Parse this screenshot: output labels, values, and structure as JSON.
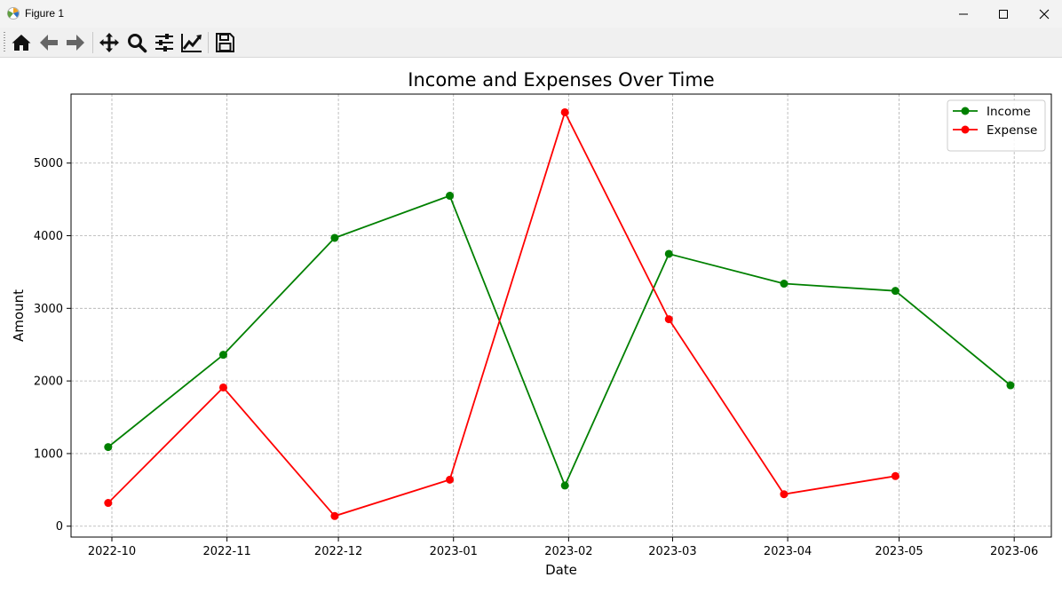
{
  "window": {
    "title": "Figure 1"
  },
  "toolbar": {
    "tools": [
      "home-icon",
      "back-arrow-icon",
      "forward-arrow-icon",
      "pan-icon",
      "zoom-icon",
      "configure-subplots-icon",
      "edit-axis-icon",
      "save-icon"
    ]
  },
  "chart_data": {
    "type": "line",
    "title": "Income and Expenses Over Time",
    "xlabel": "Date",
    "ylabel": "Amount",
    "x_ticks": [
      "2022-10",
      "2022-11",
      "2022-12",
      "2023-01",
      "2023-02",
      "2023-03",
      "2023-04",
      "2023-05",
      "2023-06"
    ],
    "y_ticks": [
      "0",
      "1000",
      "2000",
      "3000",
      "4000",
      "5000"
    ],
    "xlim": [
      "2022-09-20",
      "2023-06-11"
    ],
    "ylim": [
      -150,
      5950
    ],
    "grid": true,
    "legend_position": "top-right",
    "series": [
      {
        "name": "Income",
        "color": "#008000",
        "x": [
          "2022-09-30",
          "2022-10-31",
          "2022-11-30",
          "2022-12-31",
          "2023-01-31",
          "2023-02-28",
          "2023-03-31",
          "2023-04-30",
          "2023-05-31"
        ],
        "values": [
          1090,
          2360,
          3970,
          4550,
          560,
          3750,
          3340,
          3240,
          1940
        ]
      },
      {
        "name": "Expense",
        "color": "#ff0000",
        "x": [
          "2022-09-30",
          "2022-10-31",
          "2022-11-30",
          "2022-12-31",
          "2023-01-31",
          "2023-02-28",
          "2023-03-31",
          "2023-04-30"
        ],
        "values": [
          320,
          1910,
          140,
          640,
          5700,
          2850,
          440,
          690
        ]
      }
    ]
  }
}
